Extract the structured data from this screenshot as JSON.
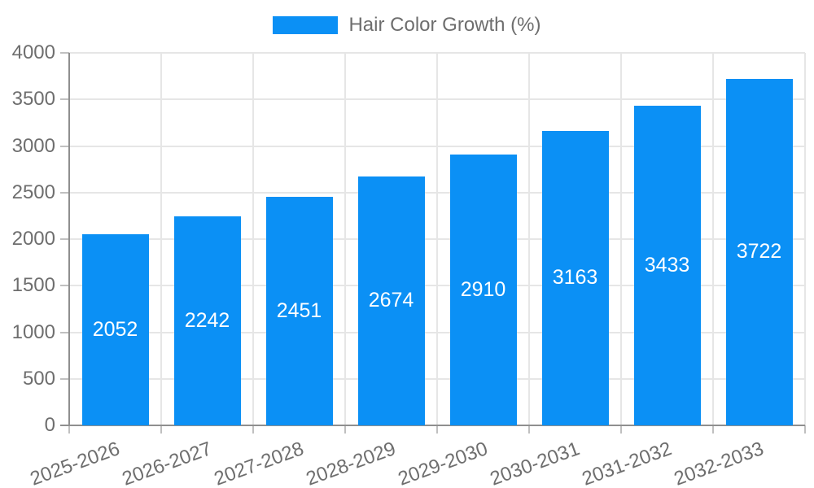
{
  "chart_data": {
    "type": "bar",
    "title": "",
    "xlabel": "",
    "ylabel": "",
    "categories": [
      "2025-2026",
      "2026-2027",
      "2027-2028",
      "2028-2029",
      "2029-2030",
      "2030-2031",
      "2031-2032",
      "2032-2033"
    ],
    "series": [
      {
        "name": "Hair Color Growth (%)",
        "color": "#0b90f5",
        "values": [
          2052,
          2242,
          2451,
          2674,
          2910,
          3163,
          3433,
          3722
        ]
      }
    ],
    "value_labels_shown": true,
    "ylim": [
      0,
      4000
    ],
    "yticks": [
      0,
      500,
      1000,
      1500,
      2000,
      2500,
      3000,
      3500,
      4000
    ],
    "grid": true,
    "legend_position": "top",
    "x_label_rotation_deg": -20
  },
  "colors": {
    "bar": "#0b90f5",
    "background": "#ffffff",
    "grid_line": "#e6e6e6",
    "axis_line": "#8f8f8f",
    "tick_mark": "#c0c0c0",
    "tick_label": "#6e6e6e",
    "legend_label": "#6e6e6e",
    "value_label": "#ffffff"
  },
  "legend": {
    "items": [
      {
        "label": "Hair Color Growth (%)",
        "color": "#0b90f5"
      }
    ]
  }
}
